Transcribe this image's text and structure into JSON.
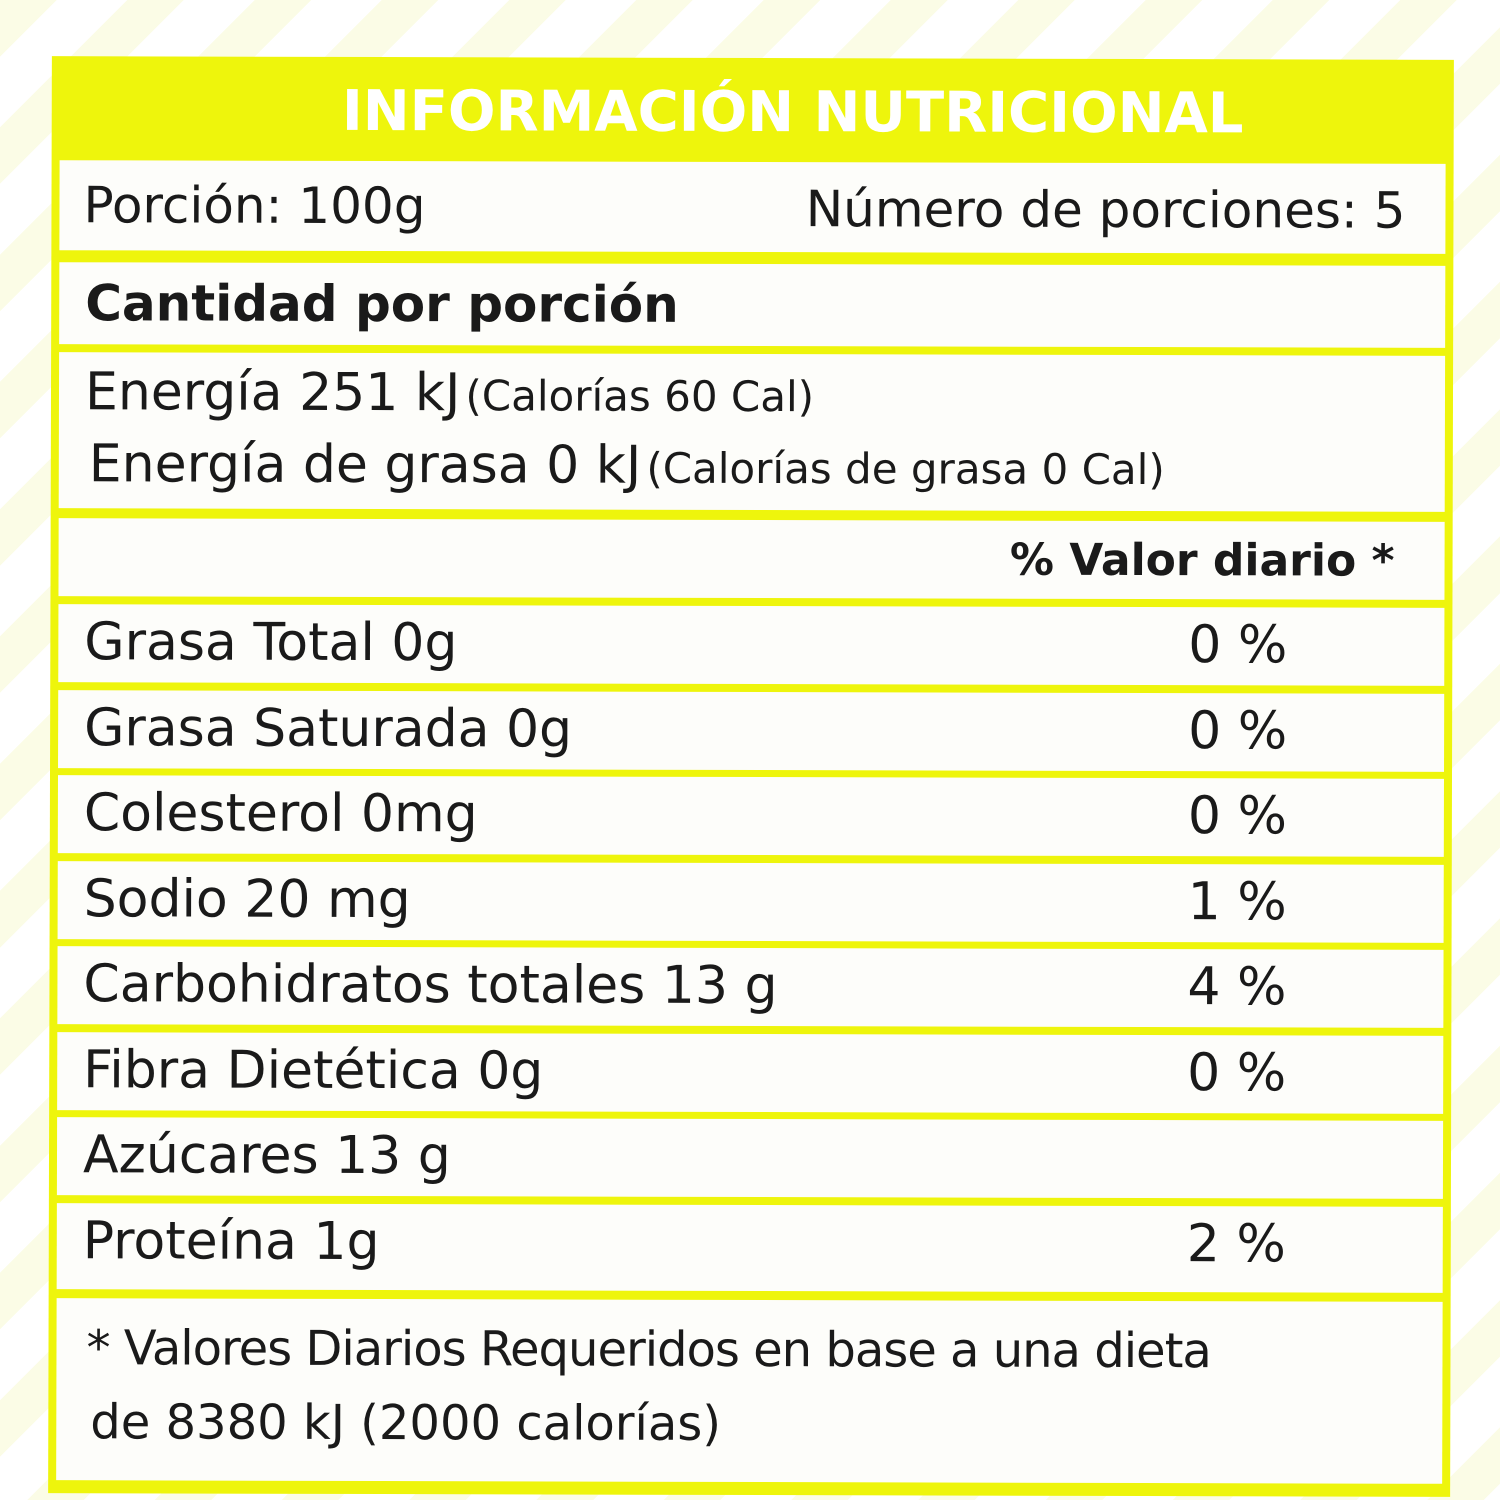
{
  "title": "INFORMACIÓN NUTRICIONAL",
  "serving": {
    "portion": "Porción: 100g",
    "count": "Número de porciones: 5"
  },
  "amount_header": "Cantidad por porción",
  "energy": {
    "line1_main": "Energía 251 kJ",
    "line1_sub": "(Calorías 60 Cal)",
    "line2_main": "Energía de grasa 0 kJ",
    "line2_sub": "(Calorías de grasa 0 Cal)"
  },
  "dv_header": "% Valor diario *",
  "nutrients": [
    {
      "name": "Grasa Total 0g",
      "dv": "0 %"
    },
    {
      "name": "Grasa Saturada 0g",
      "dv": "0 %"
    },
    {
      "name": "Colesterol 0mg",
      "dv": "0 %"
    },
    {
      "name": "Sodio 20 mg",
      "dv": "1 %"
    },
    {
      "name": "Carbohidratos totales 13 g",
      "dv": "4 %"
    },
    {
      "name": "Fibra Dietética 0g",
      "dv": "0 %"
    },
    {
      "name": "Azúcares 13 g",
      "dv": ""
    },
    {
      "name": "Proteína 1g",
      "dv": "2 %"
    }
  ],
  "footnote": {
    "line1": "* Valores Diarios Requeridos en base a una dieta",
    "line2": "de 8380 kJ (2000 calorías)"
  },
  "colors": {
    "accent": "#eef50c",
    "text": "#1a1a1a"
  }
}
